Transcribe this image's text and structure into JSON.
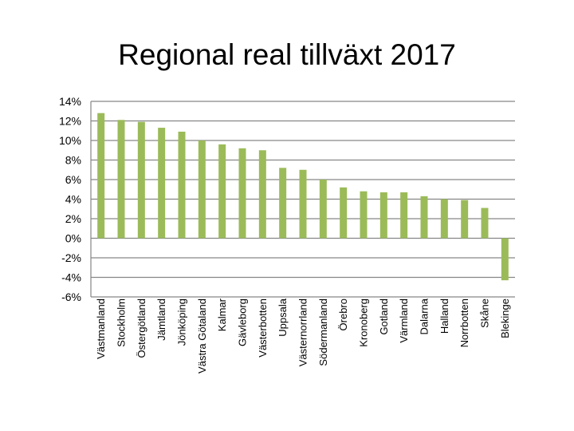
{
  "chart_data": {
    "type": "bar",
    "title": "Regional real tillväxt 2017",
    "xlabel": "",
    "ylabel": "",
    "ylim": [
      -6,
      14
    ],
    "yticks": [
      14,
      12,
      10,
      8,
      6,
      4,
      2,
      0,
      -2,
      -4,
      -6
    ],
    "ytick_labels": [
      "14%",
      "12%",
      "10%",
      "8%",
      "6%",
      "4%",
      "2%",
      "0%",
      "-2%",
      "-4%",
      "-6%"
    ],
    "grid": true,
    "legend": "none",
    "bar_color": "#9BBB59",
    "grid_color": "#868686",
    "categories": [
      "Västmanland",
      "Stockholm",
      "Östergötland",
      "Jämtland",
      "Jönköping",
      "Västra Götaland",
      "Kalmar",
      "Gävleborg",
      "Västerbotten",
      "Uppsala",
      "Västernorrland",
      "Södermanland",
      "Örebro",
      "Kronoberg",
      "Gotland",
      "Värmland",
      "Dalarna",
      "Halland",
      "Norrbotten",
      "Skåne",
      "Blekinge"
    ],
    "values": [
      12.8,
      12.1,
      11.9,
      11.3,
      10.9,
      10.0,
      9.6,
      9.2,
      9.0,
      7.2,
      7.0,
      6.0,
      5.2,
      4.8,
      4.7,
      4.7,
      4.3,
      4.0,
      3.9,
      3.1,
      -4.3
    ]
  }
}
